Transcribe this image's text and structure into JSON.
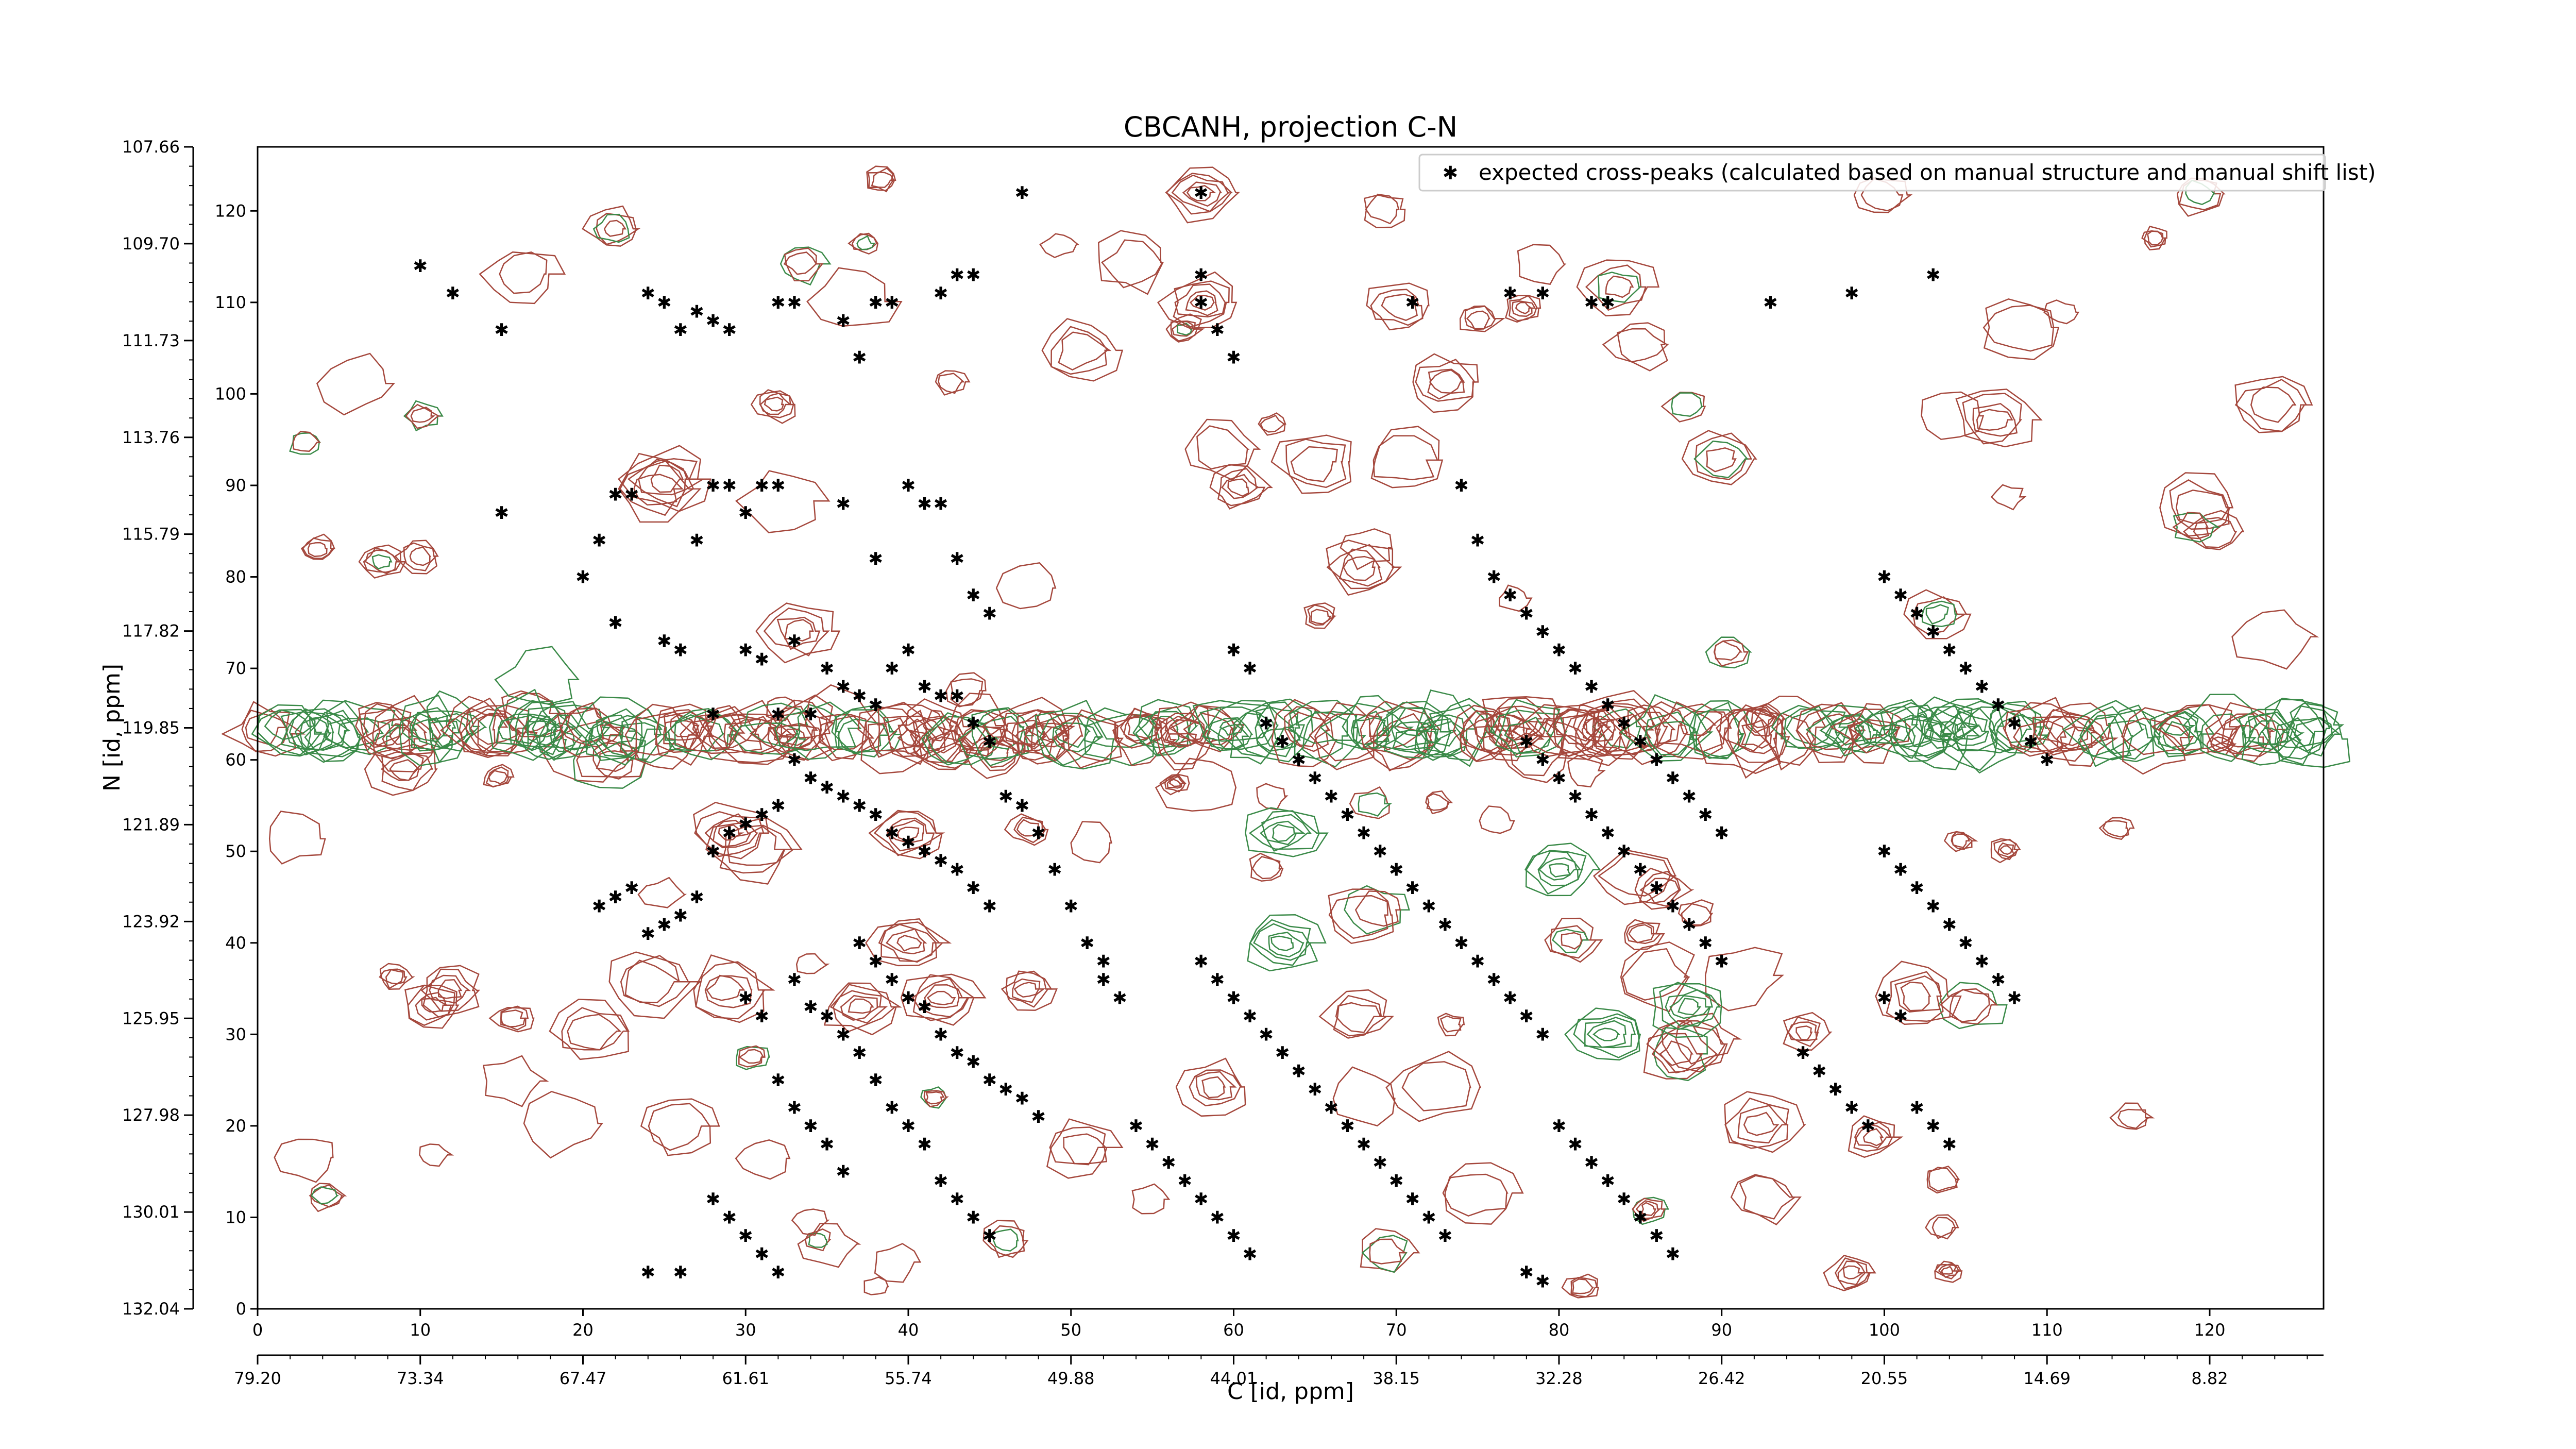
{
  "chart_data": {
    "type": "scatter",
    "title": "CBCANH, projection C-N",
    "xlabel": "C [id, ppm]",
    "ylabel": "N [id, ppm]",
    "xlim": [
      0,
      127
    ],
    "ylim": [
      0,
      127
    ],
    "x_ticks": [
      0,
      10,
      20,
      30,
      40,
      50,
      60,
      70,
      80,
      90,
      100,
      110,
      120
    ],
    "y_ticks": [
      0,
      10,
      20,
      30,
      40,
      50,
      60,
      70,
      80,
      90,
      100,
      110,
      120
    ],
    "x_ppm_ticks": [
      {
        "pos": 0,
        "label": "79.20"
      },
      {
        "pos": 10,
        "label": "73.34"
      },
      {
        "pos": 20,
        "label": "67.47"
      },
      {
        "pos": 30,
        "label": "61.61"
      },
      {
        "pos": 40,
        "label": "55.74"
      },
      {
        "pos": 50,
        "label": "49.88"
      },
      {
        "pos": 60,
        "label": "44.01"
      },
      {
        "pos": 70,
        "label": "38.15"
      },
      {
        "pos": 80,
        "label": "32.28"
      },
      {
        "pos": 90,
        "label": "26.42"
      },
      {
        "pos": 100,
        "label": "20.55"
      },
      {
        "pos": 110,
        "label": "14.69"
      },
      {
        "pos": 120,
        "label": "8.82"
      }
    ],
    "y_ppm_ticks": [
      {
        "pos": 0,
        "label": "132.04"
      },
      {
        "pos": 11,
        "label": "130.01"
      },
      {
        "pos": 22,
        "label": "127.98"
      },
      {
        "pos": 33,
        "label": "125.95"
      },
      {
        "pos": 44,
        "label": "123.92"
      },
      {
        "pos": 55,
        "label": "121.89"
      },
      {
        "pos": 66,
        "label": "119.85"
      },
      {
        "pos": 77,
        "label": "117.82"
      },
      {
        "pos": 88,
        "label": "115.79"
      },
      {
        "pos": 99,
        "label": "113.76"
      },
      {
        "pos": 110,
        "label": "111.73"
      },
      {
        "pos": 121,
        "label": "109.70"
      },
      {
        "pos": 132,
        "label": "107.66"
      }
    ],
    "grid": false,
    "legend": {
      "position": "top-right",
      "entries": [
        "expected cross-peaks (calculated based on manual structure and manual shift list)"
      ]
    },
    "colors": {
      "peaks": "#0000ff",
      "contour_positive": "#a5483d",
      "contour_negative": "#3a8a48"
    },
    "series": [
      {
        "name": "expected cross-peaks (calculated based on manual structure and manual shift list)",
        "points": [
          [
            47,
            122
          ],
          [
            58,
            122
          ],
          [
            10,
            114
          ],
          [
            12,
            111
          ],
          [
            15,
            107
          ],
          [
            24,
            111
          ],
          [
            25,
            110
          ],
          [
            26,
            107
          ],
          [
            27,
            109
          ],
          [
            28,
            108
          ],
          [
            29,
            107
          ],
          [
            32,
            110
          ],
          [
            33,
            110
          ],
          [
            36,
            108
          ],
          [
            37,
            104
          ],
          [
            38,
            110
          ],
          [
            39,
            110
          ],
          [
            42,
            111
          ],
          [
            43,
            113
          ],
          [
            44,
            113
          ],
          [
            58,
            113
          ],
          [
            58,
            110
          ],
          [
            59,
            107
          ],
          [
            60,
            104
          ],
          [
            71,
            110
          ],
          [
            77,
            111
          ],
          [
            79,
            111
          ],
          [
            82,
            110
          ],
          [
            83,
            110
          ],
          [
            93,
            110
          ],
          [
            98,
            111
          ],
          [
            103,
            113
          ],
          [
            22,
            89
          ],
          [
            23,
            89
          ],
          [
            27,
            84
          ],
          [
            28,
            90
          ],
          [
            29,
            90
          ],
          [
            30,
            87
          ],
          [
            31,
            90
          ],
          [
            32,
            90
          ],
          [
            36,
            88
          ],
          [
            38,
            82
          ],
          [
            40,
            90
          ],
          [
            41,
            88
          ],
          [
            42,
            88
          ],
          [
            43,
            82
          ],
          [
            44,
            78
          ],
          [
            45,
            76
          ],
          [
            15,
            87
          ],
          [
            21,
            84
          ],
          [
            20,
            80
          ],
          [
            22,
            75
          ],
          [
            25,
            73
          ],
          [
            26,
            72
          ],
          [
            28,
            65
          ],
          [
            30,
            72
          ],
          [
            31,
            71
          ],
          [
            32,
            65
          ],
          [
            33,
            73
          ],
          [
            34,
            65
          ],
          [
            35,
            70
          ],
          [
            36,
            68
          ],
          [
            37,
            67
          ],
          [
            38,
            66
          ],
          [
            39,
            70
          ],
          [
            40,
            72
          ],
          [
            41,
            68
          ],
          [
            42,
            67
          ],
          [
            43,
            67
          ],
          [
            44,
            64
          ],
          [
            45,
            62
          ],
          [
            46,
            56
          ],
          [
            47,
            55
          ],
          [
            48,
            52
          ],
          [
            49,
            48
          ],
          [
            50,
            44
          ],
          [
            51,
            40
          ],
          [
            52,
            38
          ],
          [
            52,
            36
          ],
          [
            53,
            34
          ],
          [
            33,
            60
          ],
          [
            34,
            58
          ],
          [
            35,
            57
          ],
          [
            36,
            56
          ],
          [
            37,
            55
          ],
          [
            38,
            54
          ],
          [
            39,
            52
          ],
          [
            40,
            51
          ],
          [
            41,
            50
          ],
          [
            42,
            49
          ],
          [
            43,
            48
          ],
          [
            44,
            46
          ],
          [
            45,
            44
          ],
          [
            32,
            55
          ],
          [
            31,
            54
          ],
          [
            30,
            53
          ],
          [
            29,
            52
          ],
          [
            28,
            50
          ],
          [
            27,
            45
          ],
          [
            26,
            43
          ],
          [
            25,
            42
          ],
          [
            24,
            41
          ],
          [
            23,
            46
          ],
          [
            22,
            45
          ],
          [
            21,
            44
          ],
          [
            37,
            40
          ],
          [
            38,
            38
          ],
          [
            39,
            36
          ],
          [
            40,
            34
          ],
          [
            41,
            33
          ],
          [
            42,
            30
          ],
          [
            43,
            28
          ],
          [
            44,
            27
          ],
          [
            45,
            25
          ],
          [
            46,
            24
          ],
          [
            47,
            23
          ],
          [
            48,
            21
          ],
          [
            33,
            36
          ],
          [
            34,
            33
          ],
          [
            35,
            32
          ],
          [
            36,
            30
          ],
          [
            37,
            28
          ],
          [
            38,
            25
          ],
          [
            39,
            22
          ],
          [
            40,
            20
          ],
          [
            41,
            18
          ],
          [
            42,
            14
          ],
          [
            43,
            12
          ],
          [
            44,
            10
          ],
          [
            45,
            8
          ],
          [
            30,
            34
          ],
          [
            31,
            32
          ],
          [
            32,
            25
          ],
          [
            33,
            22
          ],
          [
            34,
            20
          ],
          [
            35,
            18
          ],
          [
            36,
            15
          ],
          [
            28,
            12
          ],
          [
            29,
            10
          ],
          [
            30,
            8
          ],
          [
            31,
            6
          ],
          [
            24,
            4
          ],
          [
            26,
            4
          ],
          [
            32,
            4
          ],
          [
            58,
            38
          ],
          [
            59,
            36
          ],
          [
            60,
            34
          ],
          [
            61,
            32
          ],
          [
            62,
            30
          ],
          [
            63,
            28
          ],
          [
            64,
            26
          ],
          [
            65,
            24
          ],
          [
            66,
            22
          ],
          [
            67,
            20
          ],
          [
            68,
            18
          ],
          [
            69,
            16
          ],
          [
            70,
            14
          ],
          [
            71,
            12
          ],
          [
            72,
            10
          ],
          [
            73,
            8
          ],
          [
            60,
            72
          ],
          [
            61,
            70
          ],
          [
            62,
            64
          ],
          [
            63,
            62
          ],
          [
            64,
            60
          ],
          [
            65,
            58
          ],
          [
            66,
            56
          ],
          [
            67,
            54
          ],
          [
            68,
            52
          ],
          [
            69,
            50
          ],
          [
            70,
            48
          ],
          [
            71,
            46
          ],
          [
            72,
            44
          ],
          [
            73,
            42
          ],
          [
            74,
            40
          ],
          [
            75,
            38
          ],
          [
            76,
            36
          ],
          [
            77,
            34
          ],
          [
            78,
            32
          ],
          [
            79,
            30
          ],
          [
            74,
            90
          ],
          [
            75,
            84
          ],
          [
            76,
            80
          ],
          [
            77,
            78
          ],
          [
            78,
            76
          ],
          [
            79,
            74
          ],
          [
            80,
            72
          ],
          [
            81,
            70
          ],
          [
            82,
            68
          ],
          [
            83,
            66
          ],
          [
            84,
            64
          ],
          [
            85,
            62
          ],
          [
            86,
            60
          ],
          [
            87,
            58
          ],
          [
            88,
            56
          ],
          [
            89,
            54
          ],
          [
            90,
            52
          ],
          [
            78,
            62
          ],
          [
            79,
            60
          ],
          [
            80,
            58
          ],
          [
            81,
            56
          ],
          [
            82,
            54
          ],
          [
            83,
            52
          ],
          [
            84,
            50
          ],
          [
            85,
            48
          ],
          [
            86,
            46
          ],
          [
            87,
            44
          ],
          [
            88,
            42
          ],
          [
            89,
            40
          ],
          [
            90,
            38
          ],
          [
            80,
            20
          ],
          [
            81,
            18
          ],
          [
            82,
            16
          ],
          [
            83,
            14
          ],
          [
            84,
            12
          ],
          [
            85,
            10
          ],
          [
            86,
            8
          ],
          [
            87,
            6
          ],
          [
            78,
            4
          ],
          [
            79,
            3
          ],
          [
            54,
            20
          ],
          [
            55,
            18
          ],
          [
            56,
            16
          ],
          [
            57,
            14
          ],
          [
            58,
            12
          ],
          [
            59,
            10
          ],
          [
            60,
            8
          ],
          [
            61,
            6
          ],
          [
            100,
            80
          ],
          [
            101,
            78
          ],
          [
            102,
            76
          ],
          [
            103,
            74
          ],
          [
            104,
            72
          ],
          [
            105,
            70
          ],
          [
            106,
            68
          ],
          [
            107,
            66
          ],
          [
            108,
            64
          ],
          [
            109,
            62
          ],
          [
            110,
            60
          ],
          [
            100,
            50
          ],
          [
            101,
            48
          ],
          [
            102,
            46
          ],
          [
            103,
            44
          ],
          [
            104,
            42
          ],
          [
            105,
            40
          ],
          [
            106,
            38
          ],
          [
            107,
            36
          ],
          [
            108,
            34
          ],
          [
            100,
            34
          ],
          [
            101,
            32
          ],
          [
            102,
            22
          ],
          [
            103,
            20
          ],
          [
            104,
            18
          ],
          [
            95,
            28
          ],
          [
            96,
            26
          ],
          [
            97,
            24
          ],
          [
            98,
            22
          ],
          [
            99,
            20
          ]
        ]
      }
    ]
  }
}
